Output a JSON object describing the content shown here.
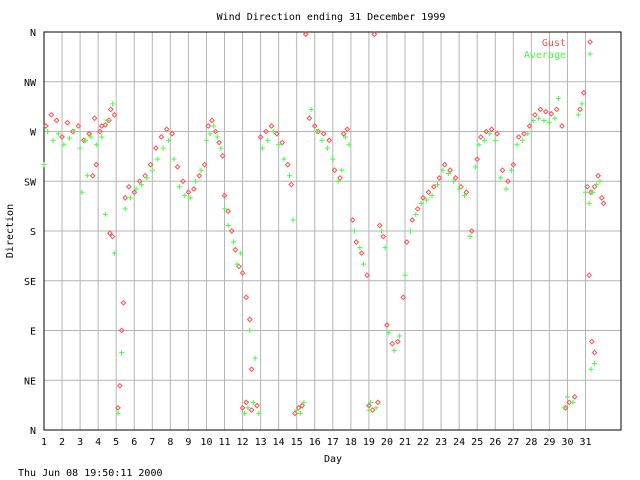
{
  "chart_data": {
    "type": "scatter",
    "title": "Wind Direction ending 31 December 1999",
    "xlabel": "Day",
    "ylabel": "Direction",
    "footer": "Thu Jun 08 19:50:11 2000",
    "xlim": [
      1,
      32
    ],
    "ylim": [
      0,
      360
    ],
    "x_ticks": [
      "1",
      "2",
      "3",
      "4",
      "5",
      "6",
      "7",
      "8",
      "9",
      "10",
      "11",
      "12",
      "13",
      "14",
      "15",
      "16",
      "17",
      "18",
      "19",
      "20",
      "21",
      "22",
      "23",
      "24",
      "25",
      "26",
      "27",
      "28",
      "29",
      "30",
      "31"
    ],
    "y_ticks": [
      {
        "label": "N",
        "value": 0
      },
      {
        "label": "NE",
        "value": 45
      },
      {
        "label": "E",
        "value": 90
      },
      {
        "label": "SE",
        "value": 135
      },
      {
        "label": "S",
        "value": 180
      },
      {
        "label": "SW",
        "value": 225
      },
      {
        "label": "W",
        "value": 270
      },
      {
        "label": "NW",
        "value": 315
      },
      {
        "label": "N",
        "value": 360
      }
    ],
    "grid": true,
    "legend_position": "top-right",
    "series": [
      {
        "name": "Gust",
        "color": "#ff5050",
        "marker": "diamond",
        "points": [
          [
            1.1,
            275
          ],
          [
            1.4,
            285
          ],
          [
            1.7,
            280
          ],
          [
            2.0,
            265
          ],
          [
            2.3,
            278
          ],
          [
            2.6,
            270
          ],
          [
            2.9,
            275
          ],
          [
            3.2,
            262
          ],
          [
            3.5,
            268
          ],
          [
            3.8,
            282
          ],
          [
            4.1,
            270
          ],
          [
            4.4,
            276
          ],
          [
            4.7,
            290
          ],
          [
            4.9,
            285
          ],
          [
            4.2,
            275
          ],
          [
            4.6,
            280
          ],
          [
            3.9,
            240
          ],
          [
            3.7,
            230
          ],
          [
            4.65,
            178
          ],
          [
            4.8,
            175
          ],
          [
            5.1,
            20
          ],
          [
            5.2,
            40
          ],
          [
            5.3,
            90
          ],
          [
            5.4,
            115
          ],
          [
            5.5,
            210
          ],
          [
            5.7,
            220
          ],
          [
            6.0,
            215
          ],
          [
            6.3,
            225
          ],
          [
            6.6,
            230
          ],
          [
            6.9,
            240
          ],
          [
            7.2,
            255
          ],
          [
            7.5,
            265
          ],
          [
            7.8,
            272
          ],
          [
            8.1,
            268
          ],
          [
            8.4,
            238
          ],
          [
            8.7,
            225
          ],
          [
            9.0,
            215
          ],
          [
            9.3,
            218
          ],
          [
            9.6,
            230
          ],
          [
            9.9,
            240
          ],
          [
            10.1,
            275
          ],
          [
            10.3,
            280
          ],
          [
            10.5,
            270
          ],
          [
            10.7,
            260
          ],
          [
            10.9,
            248
          ],
          [
            11.0,
            212
          ],
          [
            11.2,
            198
          ],
          [
            11.4,
            180
          ],
          [
            11.6,
            163
          ],
          [
            11.8,
            148
          ],
          [
            12.0,
            142
          ],
          [
            12.2,
            120
          ],
          [
            12.4,
            100
          ],
          [
            12.5,
            55
          ],
          [
            12.0,
            20
          ],
          [
            12.2,
            25
          ],
          [
            12.5,
            18
          ],
          [
            12.8,
            22
          ],
          [
            13.0,
            265
          ],
          [
            13.3,
            270
          ],
          [
            13.6,
            275
          ],
          [
            13.9,
            268
          ],
          [
            14.2,
            260
          ],
          [
            14.5,
            240
          ],
          [
            14.7,
            222
          ],
          [
            14.9,
            15
          ],
          [
            15.1,
            20
          ],
          [
            15.3,
            22
          ],
          [
            15.5,
            358
          ],
          [
            15.7,
            282
          ],
          [
            16.0,
            275
          ],
          [
            16.2,
            270
          ],
          [
            16.5,
            268
          ],
          [
            16.8,
            262
          ],
          [
            17.1,
            235
          ],
          [
            17.4,
            228
          ],
          [
            17.6,
            268
          ],
          [
            17.8,
            272
          ],
          [
            18.1,
            190
          ],
          [
            18.3,
            170
          ],
          [
            18.6,
            160
          ],
          [
            18.9,
            140
          ],
          [
            19.0,
            22
          ],
          [
            19.2,
            18
          ],
          [
            19.5,
            25
          ],
          [
            19.6,
            185
          ],
          [
            19.8,
            175
          ],
          [
            19.3,
            358
          ],
          [
            20.0,
            95
          ],
          [
            20.3,
            78
          ],
          [
            20.6,
            80
          ],
          [
            20.9,
            120
          ],
          [
            21.1,
            170
          ],
          [
            21.4,
            190
          ],
          [
            21.7,
            200
          ],
          [
            22.0,
            210
          ],
          [
            22.3,
            215
          ],
          [
            22.6,
            220
          ],
          [
            22.9,
            228
          ],
          [
            23.2,
            240
          ],
          [
            23.5,
            235
          ],
          [
            23.8,
            228
          ],
          [
            24.1,
            220
          ],
          [
            24.4,
            215
          ],
          [
            24.7,
            180
          ],
          [
            25.0,
            245
          ],
          [
            25.2,
            265
          ],
          [
            25.5,
            270
          ],
          [
            25.8,
            272
          ],
          [
            26.1,
            268
          ],
          [
            26.4,
            235
          ],
          [
            26.7,
            225
          ],
          [
            27.0,
            240
          ],
          [
            27.3,
            265
          ],
          [
            27.6,
            268
          ],
          [
            27.9,
            275
          ],
          [
            28.2,
            285
          ],
          [
            28.5,
            290
          ],
          [
            28.8,
            288
          ],
          [
            29.1,
            286
          ],
          [
            29.4,
            290
          ],
          [
            29.7,
            275
          ],
          [
            29.9,
            20
          ],
          [
            30.1,
            25
          ],
          [
            30.4,
            30
          ],
          [
            30.7,
            290
          ],
          [
            30.9,
            305
          ],
          [
            31.1,
            220
          ],
          [
            31.3,
            215
          ],
          [
            31.5,
            220
          ],
          [
            31.7,
            230
          ],
          [
            31.9,
            210
          ],
          [
            32.0,
            205
          ],
          [
            31.2,
            140
          ],
          [
            31.35,
            80
          ],
          [
            31.5,
            70
          ]
        ]
      },
      {
        "name": "Average",
        "color": "#40ff40",
        "marker": "plus",
        "points": [
          [
            1.0,
            240
          ],
          [
            1.2,
            270
          ],
          [
            1.5,
            262
          ],
          [
            1.8,
            268
          ],
          [
            2.1,
            258
          ],
          [
            2.4,
            264
          ],
          [
            2.7,
            270
          ],
          [
            3.0,
            255
          ],
          [
            3.3,
            262
          ],
          [
            3.6,
            265
          ],
          [
            3.9,
            258
          ],
          [
            4.2,
            265
          ],
          [
            4.5,
            280
          ],
          [
            4.8,
            295
          ],
          [
            3.4,
            230
          ],
          [
            3.1,
            215
          ],
          [
            4.4,
            195
          ],
          [
            4.9,
            160
          ],
          [
            5.1,
            15
          ],
          [
            5.3,
            70
          ],
          [
            5.5,
            200
          ],
          [
            5.8,
            210
          ],
          [
            6.1,
            218
          ],
          [
            6.4,
            222
          ],
          [
            6.7,
            228
          ],
          [
            7.0,
            235
          ],
          [
            7.3,
            245
          ],
          [
            7.6,
            255
          ],
          [
            7.9,
            262
          ],
          [
            8.2,
            245
          ],
          [
            8.5,
            220
          ],
          [
            8.8,
            212
          ],
          [
            9.1,
            210
          ],
          [
            9.4,
            225
          ],
          [
            9.7,
            235
          ],
          [
            10.0,
            262
          ],
          [
            10.2,
            268
          ],
          [
            10.4,
            275
          ],
          [
            10.6,
            265
          ],
          [
            10.8,
            255
          ],
          [
            11.0,
            200
          ],
          [
            11.2,
            185
          ],
          [
            11.5,
            170
          ],
          [
            11.7,
            150
          ],
          [
            11.9,
            160
          ],
          [
            12.1,
            15
          ],
          [
            12.3,
            20
          ],
          [
            12.6,
            25
          ],
          [
            12.9,
            15
          ],
          [
            12.7,
            65
          ],
          [
            12.4,
            90
          ],
          [
            13.1,
            255
          ],
          [
            13.4,
            262
          ],
          [
            13.7,
            270
          ],
          [
            14.0,
            258
          ],
          [
            14.3,
            245
          ],
          [
            14.6,
            230
          ],
          [
            14.8,
            190
          ],
          [
            15.0,
            18
          ],
          [
            15.2,
            15
          ],
          [
            15.4,
            25
          ],
          [
            15.8,
            290
          ],
          [
            16.1,
            270
          ],
          [
            16.4,
            262
          ],
          [
            16.7,
            255
          ],
          [
            17.0,
            245
          ],
          [
            17.3,
            225
          ],
          [
            17.5,
            235
          ],
          [
            17.7,
            265
          ],
          [
            17.9,
            258
          ],
          [
            18.2,
            180
          ],
          [
            18.5,
            165
          ],
          [
            18.7,
            150
          ],
          [
            19.0,
            18
          ],
          [
            19.1,
            25
          ],
          [
            19.4,
            20
          ],
          [
            19.7,
            180
          ],
          [
            19.9,
            165
          ],
          [
            20.1,
            88
          ],
          [
            20.4,
            72
          ],
          [
            20.7,
            85
          ],
          [
            21.0,
            140
          ],
          [
            21.3,
            180
          ],
          [
            21.6,
            195
          ],
          [
            21.9,
            205
          ],
          [
            22.2,
            208
          ],
          [
            22.5,
            212
          ],
          [
            22.8,
            222
          ],
          [
            23.1,
            235
          ],
          [
            23.4,
            232
          ],
          [
            23.7,
            225
          ],
          [
            24.0,
            218
          ],
          [
            24.3,
            212
          ],
          [
            24.6,
            175
          ],
          [
            24.9,
            238
          ],
          [
            25.1,
            258
          ],
          [
            25.4,
            262
          ],
          [
            25.7,
            268
          ],
          [
            26.0,
            262
          ],
          [
            26.3,
            228
          ],
          [
            26.6,
            218
          ],
          [
            26.9,
            235
          ],
          [
            27.2,
            258
          ],
          [
            27.5,
            262
          ],
          [
            27.8,
            268
          ],
          [
            28.1,
            280
          ],
          [
            28.4,
            282
          ],
          [
            28.7,
            280
          ],
          [
            29.0,
            278
          ],
          [
            29.3,
            282
          ],
          [
            29.5,
            300
          ],
          [
            29.8,
            20
          ],
          [
            30.0,
            30
          ],
          [
            30.3,
            25
          ],
          [
            30.6,
            285
          ],
          [
            30.8,
            295
          ],
          [
            31.0,
            215
          ],
          [
            31.2,
            205
          ],
          [
            31.4,
            215
          ],
          [
            31.6,
            222
          ],
          [
            31.8,
            225
          ],
          [
            31.3,
            55
          ],
          [
            31.5,
            60
          ]
        ]
      }
    ]
  }
}
